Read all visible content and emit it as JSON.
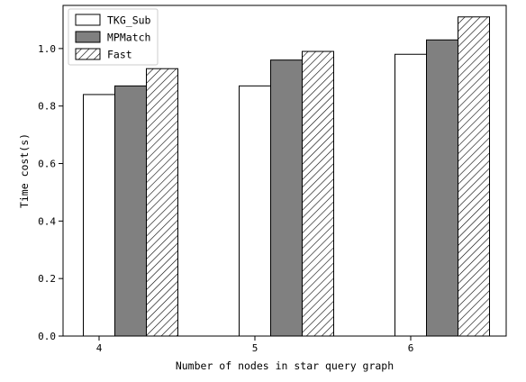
{
  "chart_data": {
    "type": "bar",
    "categories": [
      "4",
      "5",
      "6"
    ],
    "series": [
      {
        "name": "TKG_Sub",
        "values": [
          0.84,
          0.87,
          0.98
        ],
        "fill": "#ffffff",
        "pattern": "none"
      },
      {
        "name": "MPMatch",
        "values": [
          0.87,
          0.96,
          1.03
        ],
        "fill": "#808080",
        "pattern": "none"
      },
      {
        "name": "Fast",
        "values": [
          0.93,
          0.99,
          1.11
        ],
        "fill": "#ffffff",
        "pattern": "diagonal-hatch"
      }
    ],
    "xlabel": "Number of nodes in star query graph",
    "ylabel": "Time cost(s)",
    "ylim": [
      0,
      1.15
    ],
    "yticks": [
      "0.0",
      "0.2",
      "0.4",
      "0.6",
      "0.8",
      "1.0"
    ],
    "grid": false,
    "legend_position": "top-left"
  }
}
